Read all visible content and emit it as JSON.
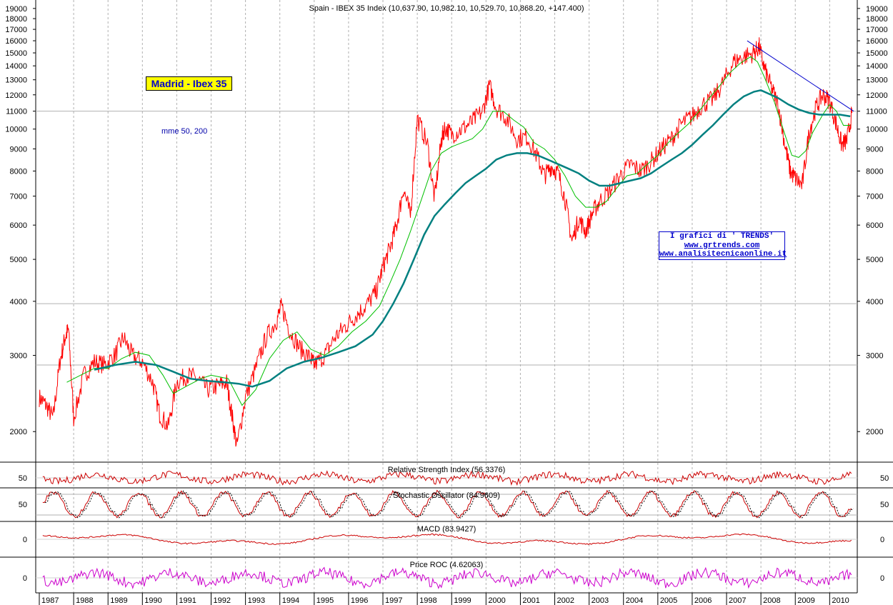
{
  "chart_data": {
    "type": "line",
    "title": "Spain - IBEX 35 Index (10,637.90, 10,982.10, 10,529.70, 10,868.20, +147.400)",
    "scale": "log",
    "y_ticks": [
      2000,
      3000,
      4000,
      5000,
      6000,
      7000,
      8000,
      9000,
      10000,
      11000,
      12000,
      13000,
      14000,
      15000,
      16000,
      17000,
      18000,
      19000
    ],
    "ylim": [
      1700,
      19500
    ],
    "x_ticks": [
      "1987",
      "1988",
      "1989",
      "1990",
      "1991",
      "1992",
      "1993",
      "1994",
      "1995",
      "1996",
      "1997",
      "1998",
      "1999",
      "2000",
      "2001",
      "2002",
      "2003",
      "2004",
      "2005",
      "2006",
      "2007",
      "2008",
      "2009",
      "2010"
    ],
    "xlim": [
      1987.0,
      2010.7
    ],
    "horizontal_lines": [
      11000,
      3950,
      2850
    ],
    "grid": true,
    "series": [
      {
        "name": "",
        "color": "#ff0000",
        "x": [
          1987.0,
          1987.2,
          1987.4,
          1987.6,
          1987.75,
          1987.85,
          1988.0,
          1988.3,
          1988.6,
          1988.9,
          1989.2,
          1989.45,
          1989.7,
          1990.0,
          1990.3,
          1990.5,
          1990.75,
          1991.0,
          1991.3,
          1991.6,
          1991.9,
          1992.2,
          1992.45,
          1992.6,
          1992.75,
          1993.0,
          1993.3,
          1993.6,
          1993.9,
          1994.05,
          1994.3,
          1994.6,
          1994.9,
          1995.0,
          1995.3,
          1995.6,
          1995.9,
          1996.2,
          1996.5,
          1996.8,
          1997.0,
          1997.2,
          1997.4,
          1997.6,
          1997.8,
          1998.0,
          1998.3,
          1998.5,
          1998.7,
          1998.8,
          1999.0,
          1999.3,
          1999.6,
          1999.9,
          2000.1,
          2000.3,
          2000.6,
          2000.9,
          2001.2,
          2001.5,
          2001.7,
          2001.9,
          2002.1,
          2002.3,
          2002.5,
          2002.7,
          2002.9,
          2003.1,
          2003.3,
          2003.6,
          2003.9,
          2004.2,
          2004.5,
          2004.8,
          2005.1,
          2005.4,
          2005.7,
          2006.0,
          2006.3,
          2006.6,
          2006.9,
          2007.2,
          2007.5,
          2007.8,
          2007.95,
          2008.1,
          2008.3,
          2008.5,
          2008.7,
          2008.85,
          2009.0,
          2009.2,
          2009.4,
          2009.6,
          2009.8,
          2010.0,
          2010.2,
          2010.35,
          2010.5,
          2010.65
        ],
        "values": [
          2400,
          2300,
          2150,
          2900,
          3300,
          3450,
          2150,
          2700,
          2900,
          2850,
          3000,
          3300,
          3000,
          2900,
          2600,
          2200,
          2050,
          2600,
          2700,
          2650,
          2500,
          2550,
          2600,
          2200,
          1850,
          2400,
          2800,
          3300,
          3600,
          3900,
          3400,
          3100,
          2950,
          2850,
          3000,
          3300,
          3500,
          3700,
          3900,
          4200,
          4800,
          5300,
          6000,
          7300,
          6300,
          10600,
          9200,
          6900,
          9400,
          10100,
          9700,
          10000,
          10400,
          11000,
          12600,
          11200,
          10600,
          9500,
          9600,
          8600,
          7800,
          8200,
          7900,
          6900,
          5500,
          6200,
          5800,
          6400,
          6800,
          7200,
          7800,
          8300,
          8000,
          8400,
          9000,
          9500,
          10300,
          10700,
          11400,
          11700,
          12800,
          14300,
          14700,
          15000,
          15500,
          13800,
          12500,
          11400,
          9200,
          8000,
          7700,
          7400,
          9800,
          11200,
          12000,
          11600,
          10200,
          9200,
          9400,
          10900
        ]
      },
      {
        "name": "mme 50",
        "color": "#00c000",
        "x": [
          1987.8,
          1988.2,
          1988.6,
          1989.0,
          1989.4,
          1989.8,
          1990.2,
          1990.6,
          1990.9,
          1991.3,
          1991.7,
          1992.0,
          1992.5,
          1992.9,
          1993.3,
          1993.7,
          1994.1,
          1994.5,
          1994.9,
          1995.3,
          1995.7,
          1996.1,
          1996.5,
          1996.9,
          1997.2,
          1997.5,
          1997.8,
          1998.1,
          1998.4,
          1998.7,
          1999.0,
          1999.3,
          1999.6,
          1999.9,
          2000.2,
          2000.5,
          2000.8,
          2001.1,
          2001.4,
          2001.7,
          2002.0,
          2002.3,
          2002.6,
          2002.9,
          2003.2,
          2003.5,
          2003.8,
          2004.1,
          2004.4,
          2004.7,
          2005.0,
          2005.3,
          2005.6,
          2005.9,
          2006.2,
          2006.5,
          2006.8,
          2007.1,
          2007.4,
          2007.7,
          2007.9,
          2008.1,
          2008.4,
          2008.7,
          2008.9,
          2009.1,
          2009.3,
          2009.5,
          2009.8,
          2010.0,
          2010.2,
          2010.4,
          2010.6
        ],
        "values": [
          2600,
          2700,
          2800,
          2800,
          2950,
          3050,
          3000,
          2700,
          2450,
          2550,
          2650,
          2700,
          2650,
          2300,
          2500,
          2950,
          3250,
          3400,
          3100,
          3000,
          3150,
          3400,
          3600,
          3900,
          4400,
          5000,
          5800,
          6800,
          8000,
          8800,
          9100,
          9300,
          9500,
          10000,
          11000,
          11000,
          10500,
          10100,
          9300,
          9000,
          8500,
          7800,
          7000,
          6600,
          6600,
          6800,
          7300,
          7800,
          7900,
          8300,
          8700,
          9300,
          9800,
          10300,
          11000,
          11800,
          12600,
          13500,
          14200,
          14700,
          14300,
          13200,
          11500,
          9700,
          8700,
          8600,
          8900,
          9800,
          10800,
          11400,
          11000,
          10200,
          10200
        ]
      },
      {
        "name": "mme 200",
        "color": "#008080",
        "x": [
          1988.6,
          1989.2,
          1989.8,
          1990.4,
          1990.9,
          1991.4,
          1991.9,
          1992.4,
          1992.8,
          1993.2,
          1993.7,
          1994.2,
          1994.7,
          1995.2,
          1995.7,
          1996.2,
          1996.7,
          1997.0,
          1997.3,
          1997.6,
          1997.9,
          1998.2,
          1998.5,
          1998.8,
          1999.1,
          1999.4,
          1999.7,
          2000.0,
          2000.3,
          2000.6,
          2000.9,
          2001.2,
          2001.5,
          2001.8,
          2002.1,
          2002.4,
          2002.7,
          2003.0,
          2003.3,
          2003.6,
          2003.9,
          2004.2,
          2004.5,
          2004.8,
          2005.1,
          2005.4,
          2005.7,
          2006.0,
          2006.3,
          2006.6,
          2006.9,
          2007.2,
          2007.5,
          2007.8,
          2008.0,
          2008.2,
          2008.5,
          2008.8,
          2009.1,
          2009.4,
          2009.7,
          2010.0,
          2010.3,
          2010.6
        ],
        "values": [
          2780,
          2850,
          2900,
          2850,
          2750,
          2650,
          2620,
          2600,
          2580,
          2540,
          2620,
          2800,
          2900,
          2960,
          3050,
          3150,
          3350,
          3600,
          3950,
          4400,
          5000,
          5700,
          6300,
          6700,
          7100,
          7500,
          7800,
          8100,
          8500,
          8700,
          8800,
          8800,
          8700,
          8500,
          8300,
          8100,
          7900,
          7600,
          7400,
          7400,
          7500,
          7600,
          7700,
          7900,
          8200,
          8500,
          8800,
          9200,
          9700,
          10200,
          10800,
          11400,
          11900,
          12200,
          12300,
          12100,
          11800,
          11400,
          11100,
          10900,
          10800,
          10800,
          10800,
          10700
        ]
      }
    ],
    "trendline": {
      "x": [
        2007.6,
        2010.7
      ],
      "values": [
        16000,
        11000
      ],
      "color": "#0000cc"
    },
    "indicators": [
      {
        "title": "Relative Strength Index (56.3376)",
        "ytick": "50",
        "color": "#cc0000"
      },
      {
        "title": "Stochastic Oscillator (84.9609)",
        "ytick": "50",
        "color": "#cc0000"
      },
      {
        "title": "MACD (83.9427)",
        "ytick": "0",
        "color": "#cc0000"
      },
      {
        "title": "Price ROC (4.62063)",
        "ytick": "0",
        "color": "#cc00cc"
      }
    ]
  },
  "annotations": {
    "badge": "Madrid - Ibex 35",
    "mme_label": "mme 50, 200",
    "credit": [
      "I grafici di ' TRENDS'",
      "www.grtrends.com",
      "www.analisitecnicaonline.it"
    ]
  }
}
